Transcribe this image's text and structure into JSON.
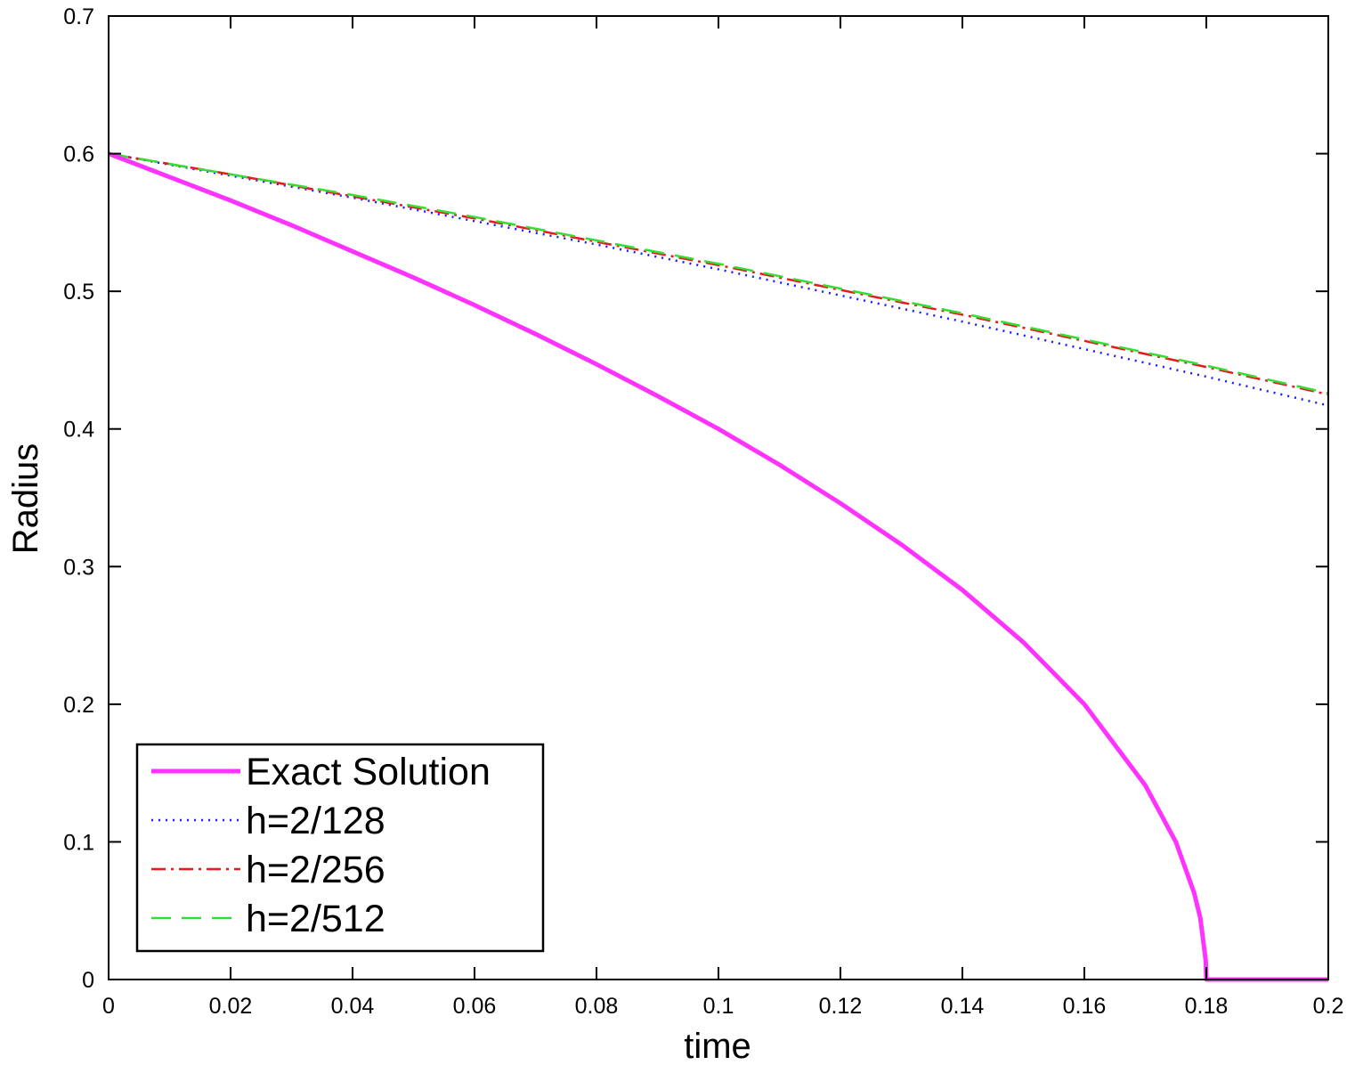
{
  "chart_data": {
    "type": "line",
    "title": "",
    "xlabel": "time",
    "ylabel": "Radius",
    "xlim": [
      0,
      0.2
    ],
    "ylim": [
      0,
      0.7
    ],
    "xticks": [
      0,
      0.02,
      0.04,
      0.06,
      0.08,
      0.1,
      0.12,
      0.14,
      0.16,
      0.18,
      0.2
    ],
    "xtick_labels": [
      "0",
      "0.02",
      "0.04",
      "0.06",
      "0.08",
      "0.1",
      "0.12",
      "0.14",
      "0.16",
      "0.18",
      "0.2"
    ],
    "yticks": [
      0,
      0.1,
      0.2,
      0.3,
      0.4,
      0.5,
      0.6,
      0.7
    ],
    "ytick_labels": [
      "0",
      "0.1",
      "0.2",
      "0.3",
      "0.4",
      "0.5",
      "0.6",
      "0.7"
    ],
    "grid": false,
    "legend_position": "bottom-left",
    "series": [
      {
        "name": "Exact Solution",
        "color": "#ff33ff",
        "style": "solid",
        "x": [
          0,
          0.01,
          0.02,
          0.03,
          0.04,
          0.05,
          0.06,
          0.07,
          0.08,
          0.09,
          0.1,
          0.11,
          0.12,
          0.13,
          0.14,
          0.15,
          0.16,
          0.17,
          0.175,
          0.178,
          0.179,
          0.1799,
          0.18,
          0.19,
          0.2
        ],
        "y": [
          0.6,
          0.583,
          0.566,
          0.548,
          0.529,
          0.51,
          0.49,
          0.469,
          0.447,
          0.424,
          0.4,
          0.374,
          0.346,
          0.316,
          0.283,
          0.245,
          0.2,
          0.141,
          0.1,
          0.063,
          0.045,
          0.014,
          0,
          0,
          0
        ]
      },
      {
        "name": "h=2/128",
        "color": "#1a1aff",
        "style": "dotted",
        "x": [
          0,
          0.02,
          0.04,
          0.06,
          0.08,
          0.1,
          0.12,
          0.14,
          0.16,
          0.18,
          0.2
        ],
        "y": [
          0.6,
          0.584,
          0.568,
          0.551,
          0.534,
          0.516,
          0.497,
          0.478,
          0.458,
          0.438,
          0.417
        ]
      },
      {
        "name": "h=2/256",
        "color": "#e61a1a",
        "style": "dashdot",
        "x": [
          0,
          0.02,
          0.04,
          0.06,
          0.08,
          0.1,
          0.12,
          0.14,
          0.16,
          0.18,
          0.2
        ],
        "y": [
          0.6,
          0.585,
          0.569,
          0.553,
          0.536,
          0.519,
          0.501,
          0.483,
          0.464,
          0.445,
          0.425
        ]
      },
      {
        "name": "h=2/512",
        "color": "#33dd33",
        "style": "dashed",
        "x": [
          0,
          0.02,
          0.04,
          0.06,
          0.08,
          0.1,
          0.12,
          0.14,
          0.16,
          0.18,
          0.2
        ],
        "y": [
          0.6,
          0.585,
          0.57,
          0.554,
          0.537,
          0.52,
          0.502,
          0.484,
          0.465,
          0.446,
          0.426
        ]
      }
    ]
  }
}
